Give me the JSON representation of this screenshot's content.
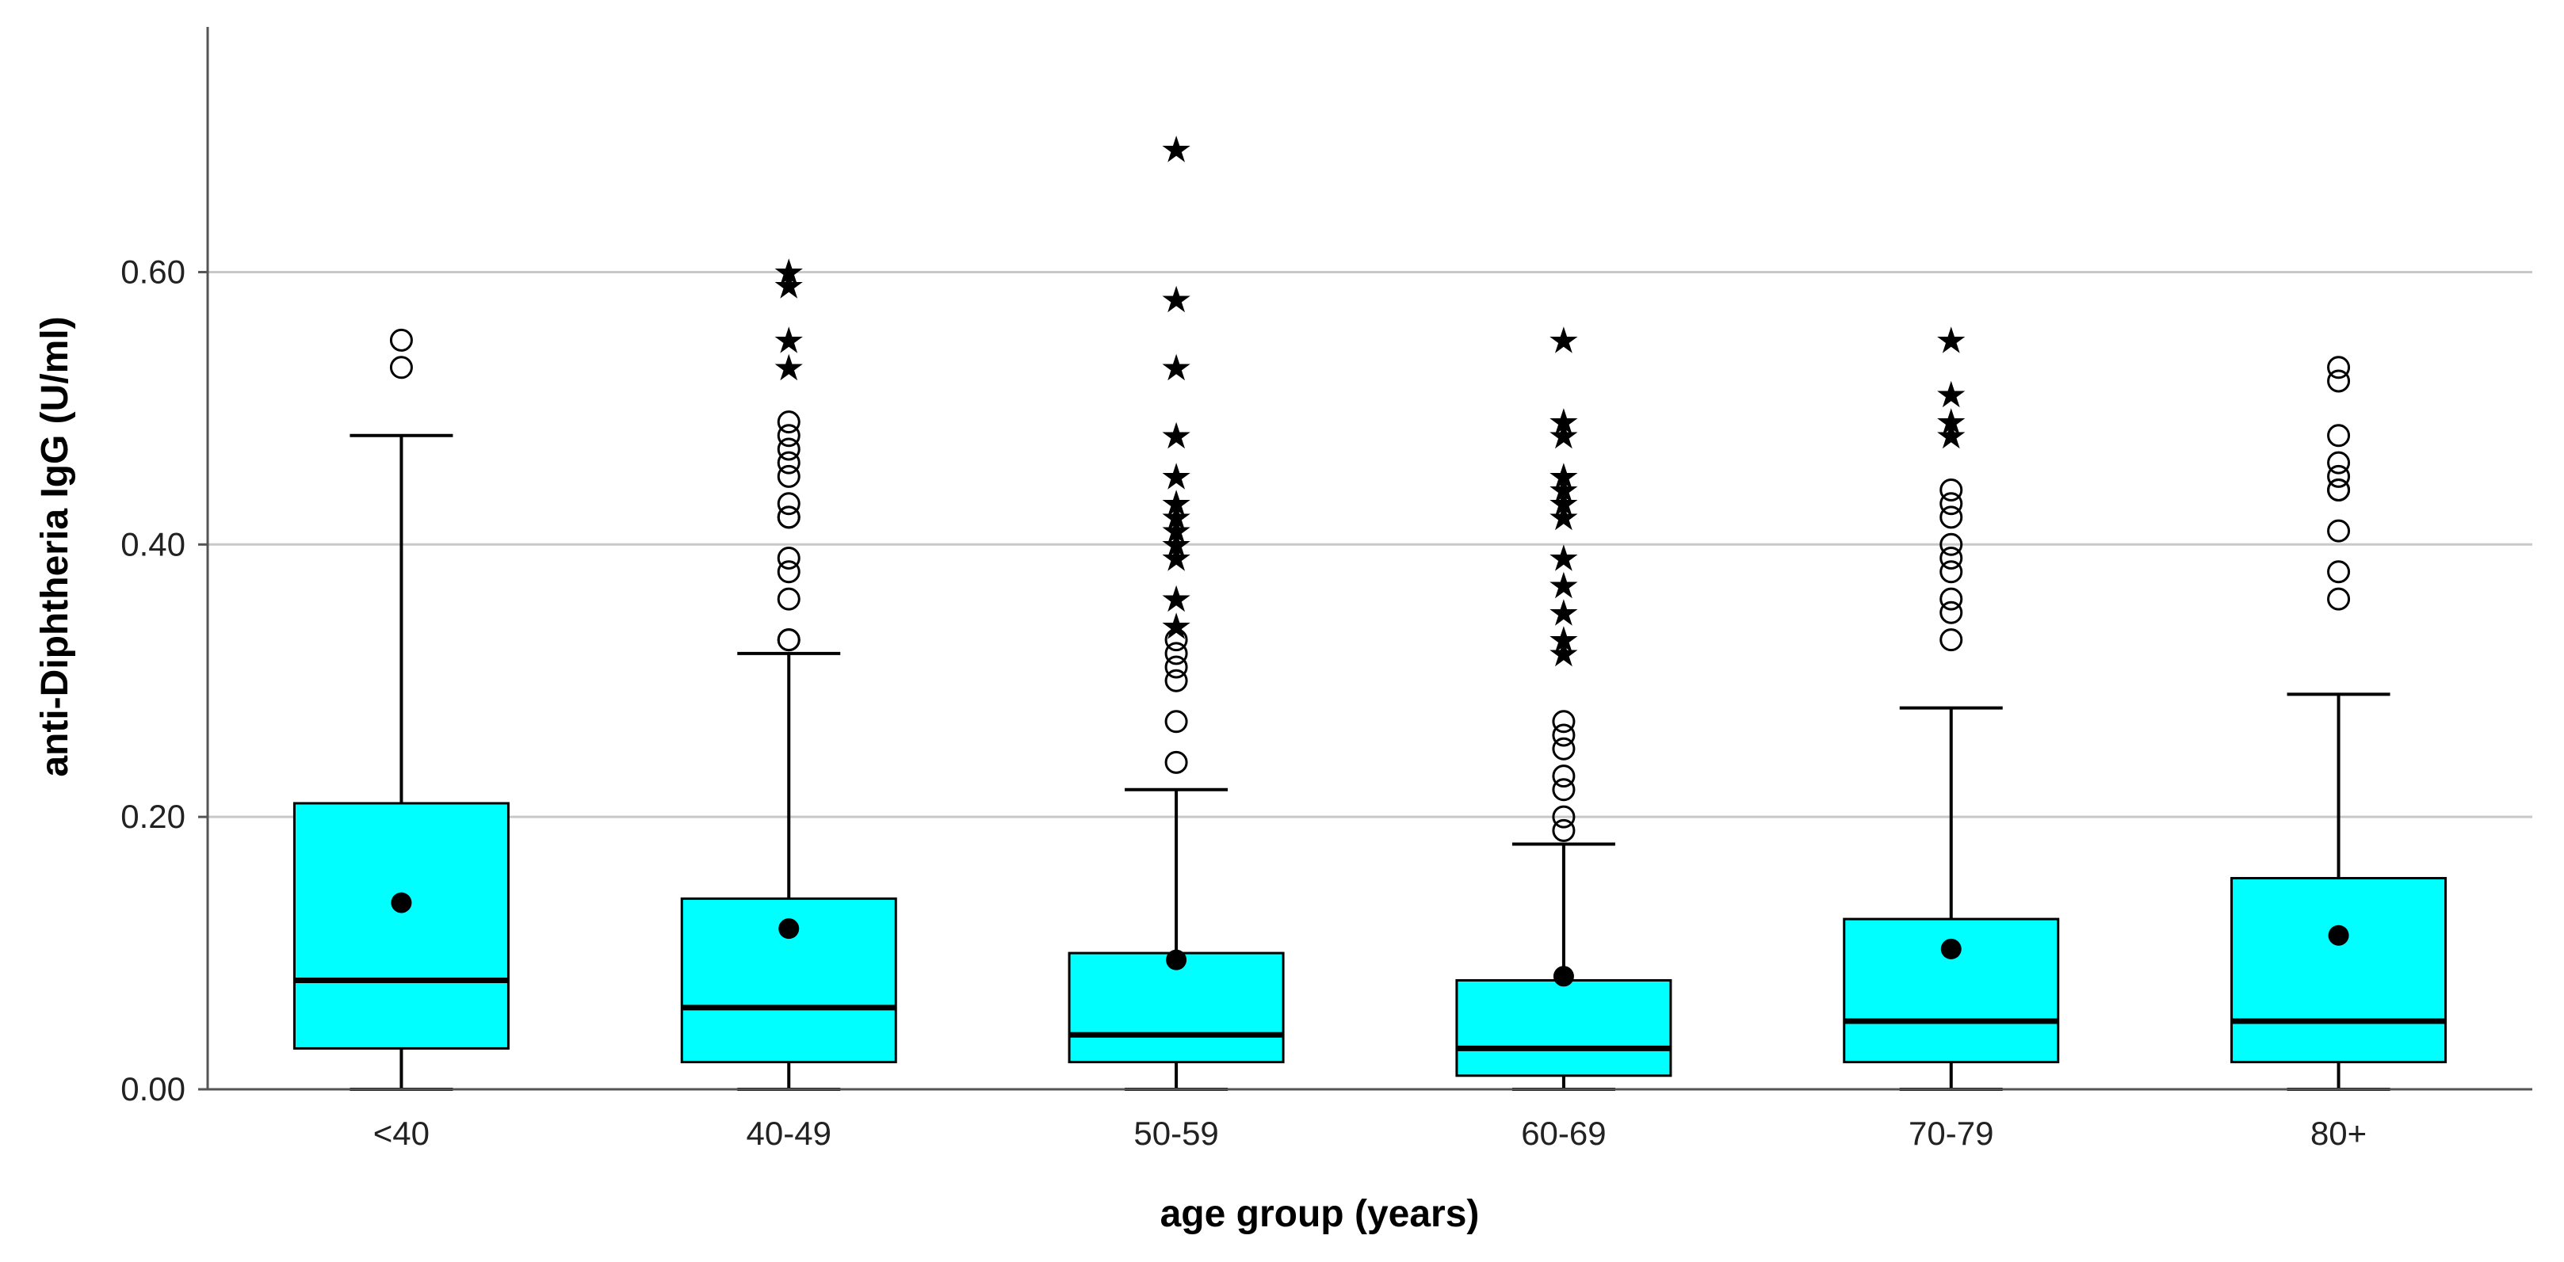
{
  "chart_data": {
    "type": "boxplot",
    "title": "",
    "xlabel": "age group (years)",
    "ylabel": "anti-Diphtheria IgG (U/ml)",
    "ylim": [
      0.0,
      0.78
    ],
    "yticks": [
      0.0,
      0.2,
      0.4,
      0.6
    ],
    "ytick_labels": [
      "0.00",
      "0.20",
      "0.40",
      "0.60"
    ],
    "grid": true,
    "colors": {
      "box": "#00FFFF",
      "line": "#000000",
      "grid": "#C8C8C8"
    },
    "categories": [
      "<40",
      "40-49",
      "50-59",
      "60-69",
      "70-79",
      "80+"
    ],
    "boxes": [
      {
        "category": "<40",
        "whisker_low": 0.0,
        "q1": 0.03,
        "median": 0.08,
        "q3": 0.21,
        "whisker_high": 0.48,
        "mean": 0.137,
        "outliers": [
          0.53,
          0.55
        ],
        "extremes": []
      },
      {
        "category": "40-49",
        "whisker_low": 0.0,
        "q1": 0.02,
        "median": 0.06,
        "q3": 0.14,
        "whisker_high": 0.32,
        "mean": 0.118,
        "outliers": [
          0.33,
          0.33,
          0.36,
          0.38,
          0.39,
          0.42,
          0.42,
          0.43,
          0.45,
          0.46,
          0.47,
          0.48,
          0.49
        ],
        "extremes": [
          0.53,
          0.55,
          0.59,
          0.6
        ]
      },
      {
        "category": "50-59",
        "whisker_low": 0.0,
        "q1": 0.02,
        "median": 0.04,
        "q3": 0.1,
        "whisker_high": 0.22,
        "mean": 0.095,
        "outliers": [
          0.24,
          0.27,
          0.3,
          0.31,
          0.32,
          0.33
        ],
        "extremes": [
          0.34,
          0.36,
          0.39,
          0.4,
          0.41,
          0.42,
          0.43,
          0.45,
          0.48,
          0.53,
          0.58,
          0.69
        ]
      },
      {
        "category": "60-69",
        "whisker_low": 0.0,
        "q1": 0.01,
        "median": 0.03,
        "q3": 0.08,
        "whisker_high": 0.18,
        "mean": 0.083,
        "outliers": [
          0.19,
          0.2,
          0.22,
          0.23,
          0.25,
          0.26,
          0.27
        ],
        "extremes": [
          0.32,
          0.33,
          0.35,
          0.37,
          0.39,
          0.42,
          0.43,
          0.44,
          0.45,
          0.48,
          0.49,
          0.55
        ]
      },
      {
        "category": "70-79",
        "whisker_low": 0.0,
        "q1": 0.02,
        "median": 0.05,
        "q3": 0.125,
        "whisker_high": 0.28,
        "mean": 0.103,
        "outliers": [
          0.33,
          0.35,
          0.36,
          0.38,
          0.39,
          0.4,
          0.42,
          0.43,
          0.44
        ],
        "extremes": [
          0.48,
          0.49,
          0.51,
          0.55
        ]
      },
      {
        "category": "80+",
        "whisker_low": 0.0,
        "q1": 0.02,
        "median": 0.05,
        "q3": 0.155,
        "whisker_high": 0.29,
        "mean": 0.113,
        "outliers": [
          0.36,
          0.38,
          0.41,
          0.44,
          0.44,
          0.45,
          0.46,
          0.48,
          0.52,
          0.53
        ],
        "extremes": []
      }
    ]
  }
}
